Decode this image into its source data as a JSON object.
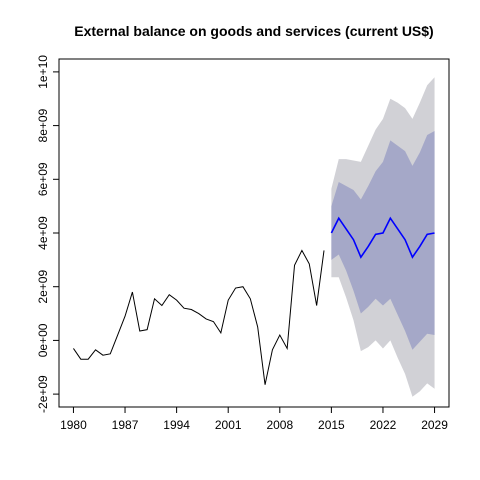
{
  "chart_data": {
    "type": "line",
    "title": "External balance on goods and services (current US$)",
    "xlabel": "",
    "ylabel": "",
    "xlim": [
      1980,
      2029
    ],
    "ylim": [
      -2000000000.0,
      10000000000.0
    ],
    "grid": false,
    "legend": "none",
    "x_ticks": [
      1980,
      1987,
      1994,
      2001,
      2008,
      2015,
      2022,
      2029
    ],
    "x_tick_labels": [
      "1980",
      "1987",
      "1994",
      "2001",
      "2008",
      "2015",
      "2022",
      "2029"
    ],
    "y_ticks": [
      -2000000000.0,
      0,
      2000000000.0,
      4000000000.0,
      6000000000.0,
      8000000000.0,
      10000000000.0
    ],
    "y_tick_labels": [
      "-2e+09",
      "0e+00",
      "2e+09",
      "4e+09",
      "6e+09",
      "8e+09",
      "1e+10"
    ],
    "colors": {
      "historical": "#000000",
      "forecast": "#0000ff",
      "band_95": "#d1d1d6",
      "band_80": "#a5a8c8"
    },
    "series": [
      {
        "role": "historical",
        "x": [
          1980,
          1981,
          1982,
          1983,
          1984,
          1985,
          1986,
          1987,
          1988,
          1989,
          1990,
          1991,
          1992,
          1993,
          1994,
          1995,
          1996,
          1997,
          1998,
          1999,
          2000,
          2001,
          2002,
          2003,
          2004,
          2005,
          2006,
          2007,
          2008,
          2009,
          2010,
          2011,
          2012,
          2013,
          2014
        ],
        "values": [
          -300000000.0,
          -700000000.0,
          -700000000.0,
          -350000000.0,
          -550000000.0,
          -500000000.0,
          200000000.0,
          900000000.0,
          1800000000.0,
          350000000.0,
          400000000.0,
          1550000000.0,
          1300000000.0,
          1700000000.0,
          1500000000.0,
          1200000000.0,
          1150000000.0,
          1000000000.0,
          800000000.0,
          700000000.0,
          280000000.0,
          1500000000.0,
          1950000000.0,
          2000000000.0,
          1550000000.0,
          500000000.0,
          -1650000000.0,
          -350000000.0,
          200000000.0,
          -300000000.0,
          2800000000.0,
          3350000000.0,
          2850000000.0,
          1300000000.0,
          3350000000.0
        ]
      },
      {
        "role": "forecast",
        "x": [
          2015,
          2016,
          2017,
          2018,
          2019,
          2020,
          2021,
          2022,
          2023,
          2024,
          2025,
          2026,
          2027,
          2028,
          2029
        ],
        "values": [
          4000000000.0,
          4550000000.0,
          4150000000.0,
          3750000000.0,
          3100000000.0,
          3500000000.0,
          3950000000.0,
          4000000000.0,
          4550000000.0,
          4150000000.0,
          3750000000.0,
          3100000000.0,
          3500000000.0,
          3950000000.0,
          4000000000.0
        ],
        "band_80": {
          "lower": [
            3000000000.0,
            3200000000.0,
            2600000000.0,
            1850000000.0,
            1000000000.0,
            1250000000.0,
            1550000000.0,
            1300000000.0,
            1550000000.0,
            950000000.0,
            350000000.0,
            -350000000.0,
            -50000000.0,
            250000000.0,
            200000000.0
          ],
          "upper": [
            5000000000.0,
            5900000000.0,
            5750000000.0,
            5600000000.0,
            5250000000.0,
            5750000000.0,
            6300000000.0,
            6650000000.0,
            7450000000.0,
            7250000000.0,
            7050000000.0,
            6500000000.0,
            7000000000.0,
            7650000000.0,
            7800000000.0
          ]
        },
        "band_95": {
          "lower": [
            2350000000.0,
            2350000000.0,
            1600000000.0,
            750000000.0,
            -400000000.0,
            -250000000.0,
            0.0,
            -300000000.0,
            0.0,
            -650000000.0,
            -1250000000.0,
            -2100000000.0,
            -1900000000.0,
            -1600000000.0,
            -1800000000.0
          ]
        }
      }
    ]
  }
}
